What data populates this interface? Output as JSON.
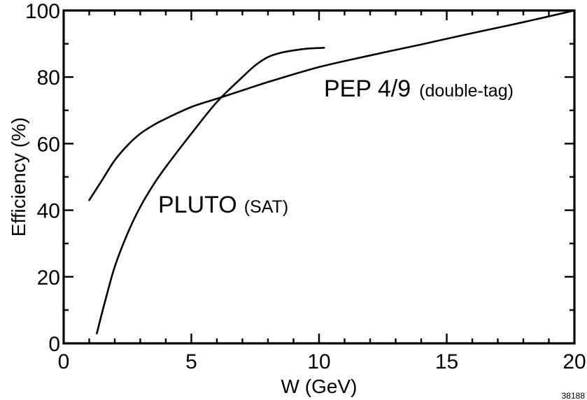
{
  "chart_data": {
    "type": "line",
    "title": "",
    "xlabel": "W (GeV)",
    "ylabel": "Efficiency (%)",
    "xlim": [
      0,
      20
    ],
    "ylim": [
      0,
      100
    ],
    "xticks": [
      0,
      5,
      10,
      15,
      20
    ],
    "yticks": [
      0,
      20,
      40,
      60,
      80,
      100
    ],
    "grid": false,
    "series": [
      {
        "name": "PEP 4/9 (double-tag)",
        "label_main": "PEP 4/9",
        "label_sub": "(double-tag)",
        "x": [
          1.0,
          1.5,
          2.0,
          2.5,
          3.0,
          3.5,
          4.0,
          5.0,
          6.0,
          7.0,
          8.0,
          10.0,
          12.0,
          14.0,
          16.0,
          18.0,
          20.0
        ],
        "y": [
          43,
          49,
          55,
          59.5,
          63,
          65.5,
          67.5,
          71,
          73.5,
          76,
          78.5,
          83,
          86.5,
          89.8,
          93.2,
          96.5,
          100
        ]
      },
      {
        "name": "PLUTO (SAT)",
        "label_main": "PLUTO",
        "label_sub": "(SAT)",
        "x": [
          1.3,
          1.6,
          2.0,
          2.5,
          3.0,
          3.5,
          4.0,
          5.0,
          6.0,
          7.0,
          7.5,
          8.0,
          8.5,
          9.0,
          9.5,
          10.2
        ],
        "y": [
          3,
          12,
          23,
          33,
          41,
          47.5,
          53,
          63,
          72.5,
          80,
          83.5,
          86,
          87.3,
          88,
          88.5,
          88.8
        ]
      }
    ],
    "figure_id": "38188"
  }
}
